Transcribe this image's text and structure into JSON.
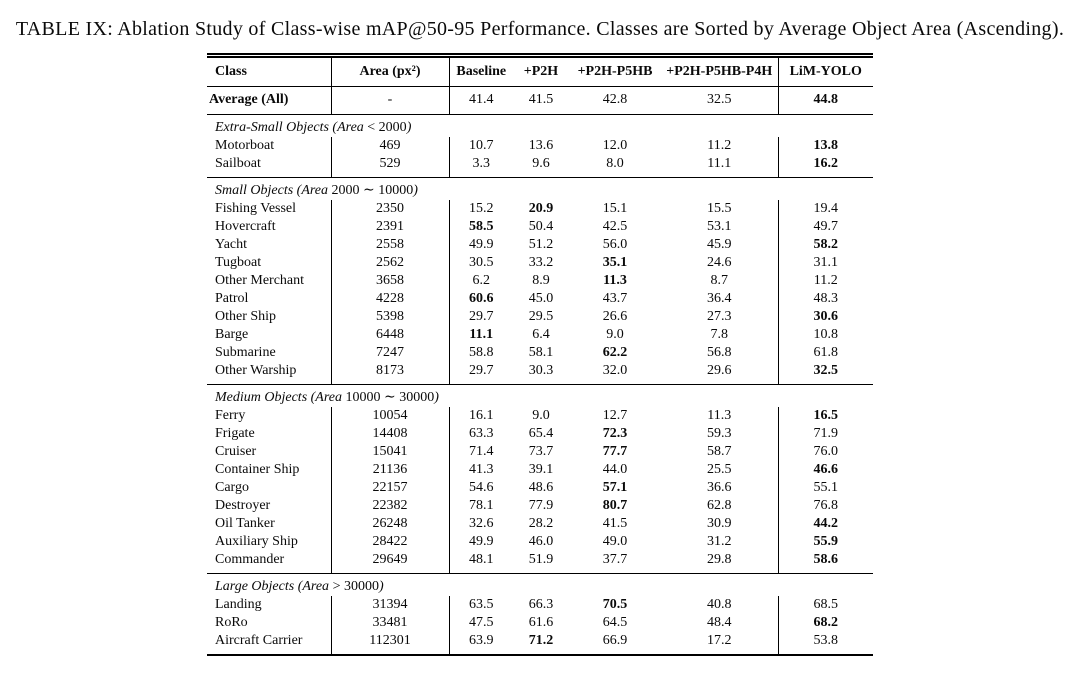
{
  "page": {
    "title": "TABLE IX: Ablation Study of Class-wise mAP@50-95 Performance. Classes are Sorted by Average Object Area (Ascending)."
  },
  "colors": {
    "background": "#ffffff",
    "text": "#0a0a0a",
    "rule": "#000000"
  },
  "table": {
    "columns": [
      "Class",
      "Area (px²)",
      "Baseline",
      "+P2H",
      "+P2H-P5HB",
      "+P2H-P5HB-P4H",
      "LiM-YOLO"
    ],
    "average": {
      "label": "Average (All)",
      "area": "-",
      "values": [
        "41.4",
        "41.5",
        "42.8",
        "32.5",
        "44.8"
      ],
      "bold": 4
    },
    "sections": [
      {
        "title_pre": "Extra-Small Objects (Area",
        "title_math": "< 2000",
        "title_post": ")",
        "rows": [
          {
            "class": "Motorboat",
            "area": "469",
            "values": [
              "10.7",
              "13.6",
              "12.0",
              "11.2",
              "13.8"
            ],
            "bold": 4
          },
          {
            "class": "Sailboat",
            "area": "529",
            "values": [
              "3.3",
              "9.6",
              "8.0",
              "11.1",
              "16.2"
            ],
            "bold": 4
          }
        ]
      },
      {
        "title_pre": "Small Objects (Area",
        "title_math": "2000 ∼ 10000",
        "title_post": ")",
        "rows": [
          {
            "class": "Fishing Vessel",
            "area": "2350",
            "values": [
              "15.2",
              "20.9",
              "15.1",
              "15.5",
              "19.4"
            ],
            "bold": 1
          },
          {
            "class": "Hovercraft",
            "area": "2391",
            "values": [
              "58.5",
              "50.4",
              "42.5",
              "53.1",
              "49.7"
            ],
            "bold": 0
          },
          {
            "class": "Yacht",
            "area": "2558",
            "values": [
              "49.9",
              "51.2",
              "56.0",
              "45.9",
              "58.2"
            ],
            "bold": 4
          },
          {
            "class": "Tugboat",
            "area": "2562",
            "values": [
              "30.5",
              "33.2",
              "35.1",
              "24.6",
              "31.1"
            ],
            "bold": 2
          },
          {
            "class": "Other Merchant",
            "area": "3658",
            "values": [
              "6.2",
              "8.9",
              "11.3",
              "8.7",
              "11.2"
            ],
            "bold": 2
          },
          {
            "class": "Patrol",
            "area": "4228",
            "values": [
              "60.6",
              "45.0",
              "43.7",
              "36.4",
              "48.3"
            ],
            "bold": 0
          },
          {
            "class": "Other Ship",
            "area": "5398",
            "values": [
              "29.7",
              "29.5",
              "26.6",
              "27.3",
              "30.6"
            ],
            "bold": 4
          },
          {
            "class": "Barge",
            "area": "6448",
            "values": [
              "11.1",
              "6.4",
              "9.0",
              "7.8",
              "10.8"
            ],
            "bold": 0
          },
          {
            "class": "Submarine",
            "area": "7247",
            "values": [
              "58.8",
              "58.1",
              "62.2",
              "56.8",
              "61.8"
            ],
            "bold": 2
          },
          {
            "class": "Other Warship",
            "area": "8173",
            "values": [
              "29.7",
              "30.3",
              "32.0",
              "29.6",
              "32.5"
            ],
            "bold": 4
          }
        ]
      },
      {
        "title_pre": "Medium Objects (Area",
        "title_math": "10000 ∼ 30000",
        "title_post": ")",
        "rows": [
          {
            "class": "Ferry",
            "area": "10054",
            "values": [
              "16.1",
              "9.0",
              "12.7",
              "11.3",
              "16.5"
            ],
            "bold": 4
          },
          {
            "class": "Frigate",
            "area": "14408",
            "values": [
              "63.3",
              "65.4",
              "72.3",
              "59.3",
              "71.9"
            ],
            "bold": 2
          },
          {
            "class": "Cruiser",
            "area": "15041",
            "values": [
              "71.4",
              "73.7",
              "77.7",
              "58.7",
              "76.0"
            ],
            "bold": 2
          },
          {
            "class": "Container Ship",
            "area": "21136",
            "values": [
              "41.3",
              "39.1",
              "44.0",
              "25.5",
              "46.6"
            ],
            "bold": 4
          },
          {
            "class": "Cargo",
            "area": "22157",
            "values": [
              "54.6",
              "48.6",
              "57.1",
              "36.6",
              "55.1"
            ],
            "bold": 2
          },
          {
            "class": "Destroyer",
            "area": "22382",
            "values": [
              "78.1",
              "77.9",
              "80.7",
              "62.8",
              "76.8"
            ],
            "bold": 2
          },
          {
            "class": "Oil Tanker",
            "area": "26248",
            "values": [
              "32.6",
              "28.2",
              "41.5",
              "30.9",
              "44.2"
            ],
            "bold": 4
          },
          {
            "class": "Auxiliary Ship",
            "area": "28422",
            "values": [
              "49.9",
              "46.0",
              "49.0",
              "31.2",
              "55.9"
            ],
            "bold": 4
          },
          {
            "class": "Commander",
            "area": "29649",
            "values": [
              "48.1",
              "51.9",
              "37.7",
              "29.8",
              "58.6"
            ],
            "bold": 4
          }
        ]
      },
      {
        "title_pre": "Large Objects (Area",
        "title_math": "> 30000",
        "title_post": ")",
        "rows": [
          {
            "class": "Landing",
            "area": "31394",
            "values": [
              "63.5",
              "66.3",
              "70.5",
              "40.8",
              "68.5"
            ],
            "bold": 2
          },
          {
            "class": "RoRo",
            "area": "33481",
            "values": [
              "47.5",
              "61.6",
              "64.5",
              "48.4",
              "68.2"
            ],
            "bold": 4
          },
          {
            "class": "Aircraft Carrier",
            "area": "112301",
            "values": [
              "63.9",
              "71.2",
              "66.9",
              "17.2",
              "53.8"
            ],
            "bold": 1
          }
        ]
      }
    ]
  }
}
